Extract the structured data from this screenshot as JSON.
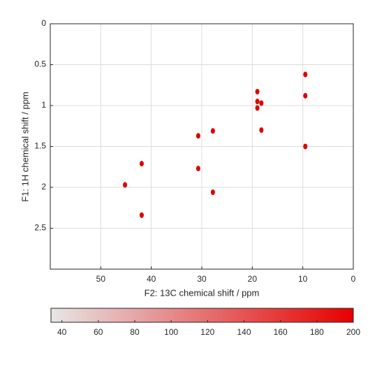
{
  "chart_data": {
    "type": "scatter",
    "x_label": "F2: 13C chemical shift / ppm",
    "y_label": "F1: 1H chemical shift / ppm",
    "xlim": [
      60,
      0
    ],
    "xticks": [
      50,
      40,
      30,
      20,
      10,
      0
    ],
    "ylim": [
      3,
      0
    ],
    "yticks": [
      0,
      0.5,
      1,
      1.5,
      2,
      2.5
    ],
    "grid": true,
    "series": [
      {
        "color": "#e00000",
        "x": [
          9.5,
          9.5,
          9.5,
          19.0,
          19.0,
          19.0,
          18.2,
          18.2,
          27.8,
          27.8,
          30.7,
          30.7,
          41.9,
          41.9,
          45.2
        ],
        "values": [
          0.62,
          0.88,
          1.5,
          0.83,
          0.95,
          1.03,
          0.97,
          1.3,
          1.31,
          2.06,
          1.37,
          1.77,
          1.71,
          2.34,
          1.97
        ]
      }
    ],
    "colorbar": {
      "clim": [
        34,
        200
      ],
      "ticks": [
        40,
        60,
        80,
        100,
        120,
        140,
        160,
        180,
        200
      ],
      "colormap": [
        "#e6e6e6",
        "#e60000"
      ]
    }
  }
}
